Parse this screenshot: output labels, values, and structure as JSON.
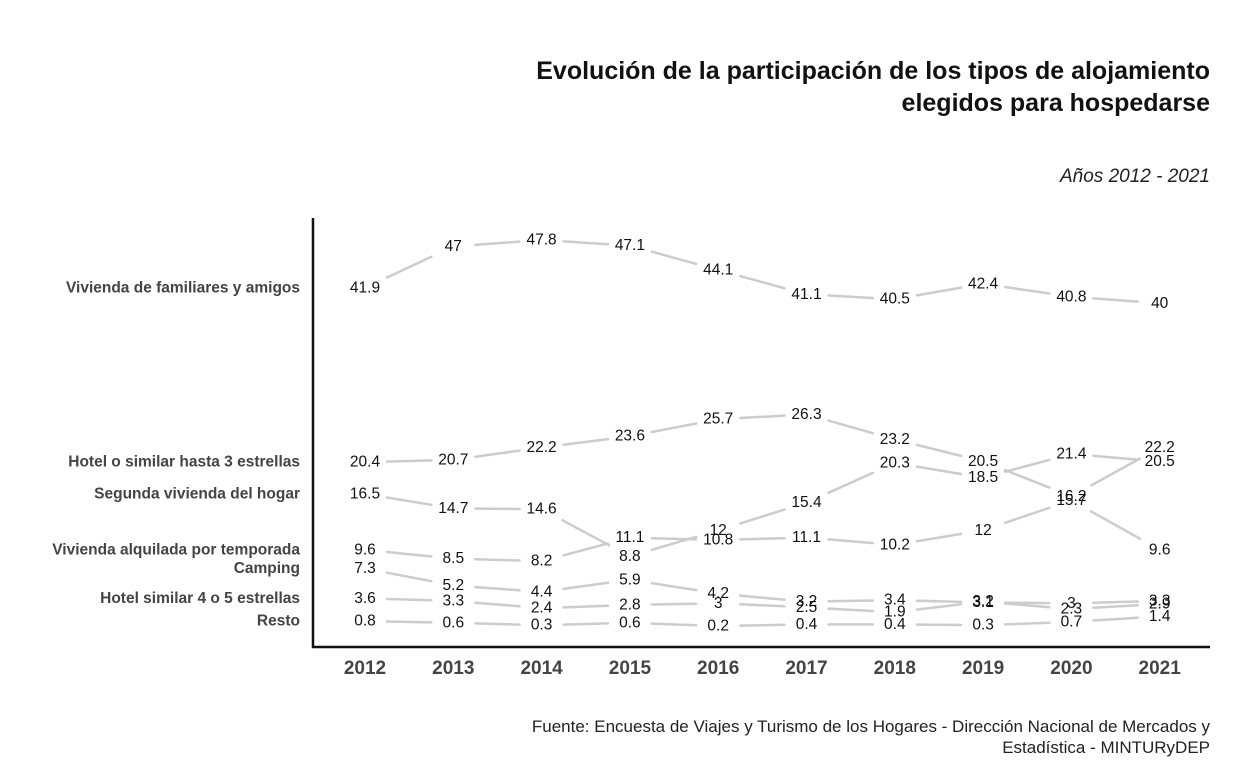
{
  "chart_data": {
    "type": "line",
    "title": "Evolución de la participación de los tipos de alojamiento elegidos para hospedarse",
    "subtitle": "Años 2012 - 2021",
    "source": "Fuente: Encuesta de Viajes y Turismo de los Hogares - Dirección Nacional de Mercados y Estadística - MINTURyDEP",
    "x": [
      "2012",
      "2013",
      "2014",
      "2015",
      "2016",
      "2017",
      "2018",
      "2019",
      "2020",
      "2021"
    ],
    "series": [
      {
        "name": "Vivienda de familiares y amigos",
        "values": [
          41.9,
          47,
          47.8,
          47.1,
          44.1,
          41.1,
          40.5,
          42.4,
          40.8,
          40
        ]
      },
      {
        "name": "Hotel o similar hasta 3 estrellas",
        "values": [
          20.4,
          20.7,
          22.2,
          23.6,
          25.7,
          26.3,
          23.2,
          20.5,
          16.2,
          22.2
        ]
      },
      {
        "name": "Segunda vivienda del hogar",
        "values": [
          16.5,
          14.7,
          14.6,
          8.8,
          12,
          15.4,
          20.3,
          18.5,
          21.4,
          20.5
        ]
      },
      {
        "name": "Vivienda alquilada por temporada",
        "values": [
          9.6,
          8.5,
          8.2,
          11.1,
          10.8,
          11.1,
          10.2,
          12,
          15.7,
          9.6
        ]
      },
      {
        "name": "Camping",
        "values": [
          7.3,
          5.2,
          4.4,
          5.9,
          4.2,
          3.2,
          3.4,
          3.1,
          3,
          3.3
        ]
      },
      {
        "name": "Hotel similar 4 o 5 estrellas",
        "values": [
          3.6,
          3.3,
          2.4,
          2.8,
          3,
          2.5,
          1.9,
          3.2,
          2.3,
          2.9
        ]
      },
      {
        "name": "Resto",
        "values": [
          0.8,
          0.6,
          0.3,
          0.6,
          0.2,
          0.4,
          0.4,
          0.3,
          0.7,
          1.4
        ]
      }
    ],
    "line_color": "#cccccc",
    "grid": false,
    "legend": "left"
  }
}
